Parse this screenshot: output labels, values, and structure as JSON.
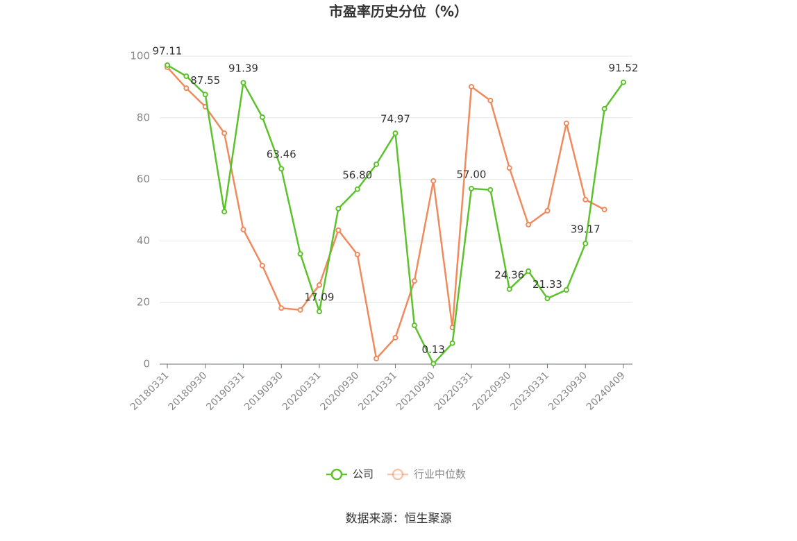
{
  "chart_data": {
    "type": "line",
    "title": "市盈率历史分位（%）",
    "categories": [
      "20180331",
      null,
      "20180930",
      null,
      "20190331",
      null,
      "20190930",
      null,
      "20200331",
      null,
      "20200930",
      null,
      "20210331",
      null,
      "20210930",
      null,
      "20220331",
      null,
      "20220930",
      null,
      "20230331",
      null,
      "20230930",
      null,
      "20240409"
    ],
    "series": [
      {
        "name": "公司",
        "color": "#5cc22c",
        "values": [
          97.11,
          93.5,
          87.55,
          49.5,
          91.39,
          80.2,
          63.46,
          35.8,
          17.09,
          50.5,
          56.8,
          64.9,
          74.97,
          12.6,
          0.13,
          6.8,
          57.0,
          56.6,
          24.36,
          30.2,
          21.33,
          24.1,
          39.17,
          82.9,
          91.52
        ],
        "value_labels": [
          "97.11",
          null,
          "87.55",
          null,
          "91.39",
          null,
          "63.46",
          null,
          "17.09",
          null,
          "56.80",
          null,
          "74.97",
          null,
          "0.13",
          null,
          "57.00",
          null,
          "24.36",
          null,
          "21.33",
          null,
          "39.17",
          null,
          "91.52"
        ]
      },
      {
        "name": "行业中位数",
        "color": "#f08a5d",
        "values": [
          96.4,
          89.6,
          83.6,
          75.0,
          43.7,
          32.0,
          18.2,
          17.6,
          25.7,
          43.5,
          35.6,
          1.8,
          8.6,
          27.0,
          59.5,
          11.9,
          90.1,
          85.6,
          63.7,
          45.3,
          49.8,
          78.2,
          53.4,
          50.2,
          null
        ]
      }
    ],
    "ylim": [
      0,
      100
    ],
    "yticks": [
      0,
      20,
      40,
      60,
      80,
      100
    ],
    "grid": true,
    "legend": "bottom",
    "source": "数据来源：恒生聚源"
  }
}
